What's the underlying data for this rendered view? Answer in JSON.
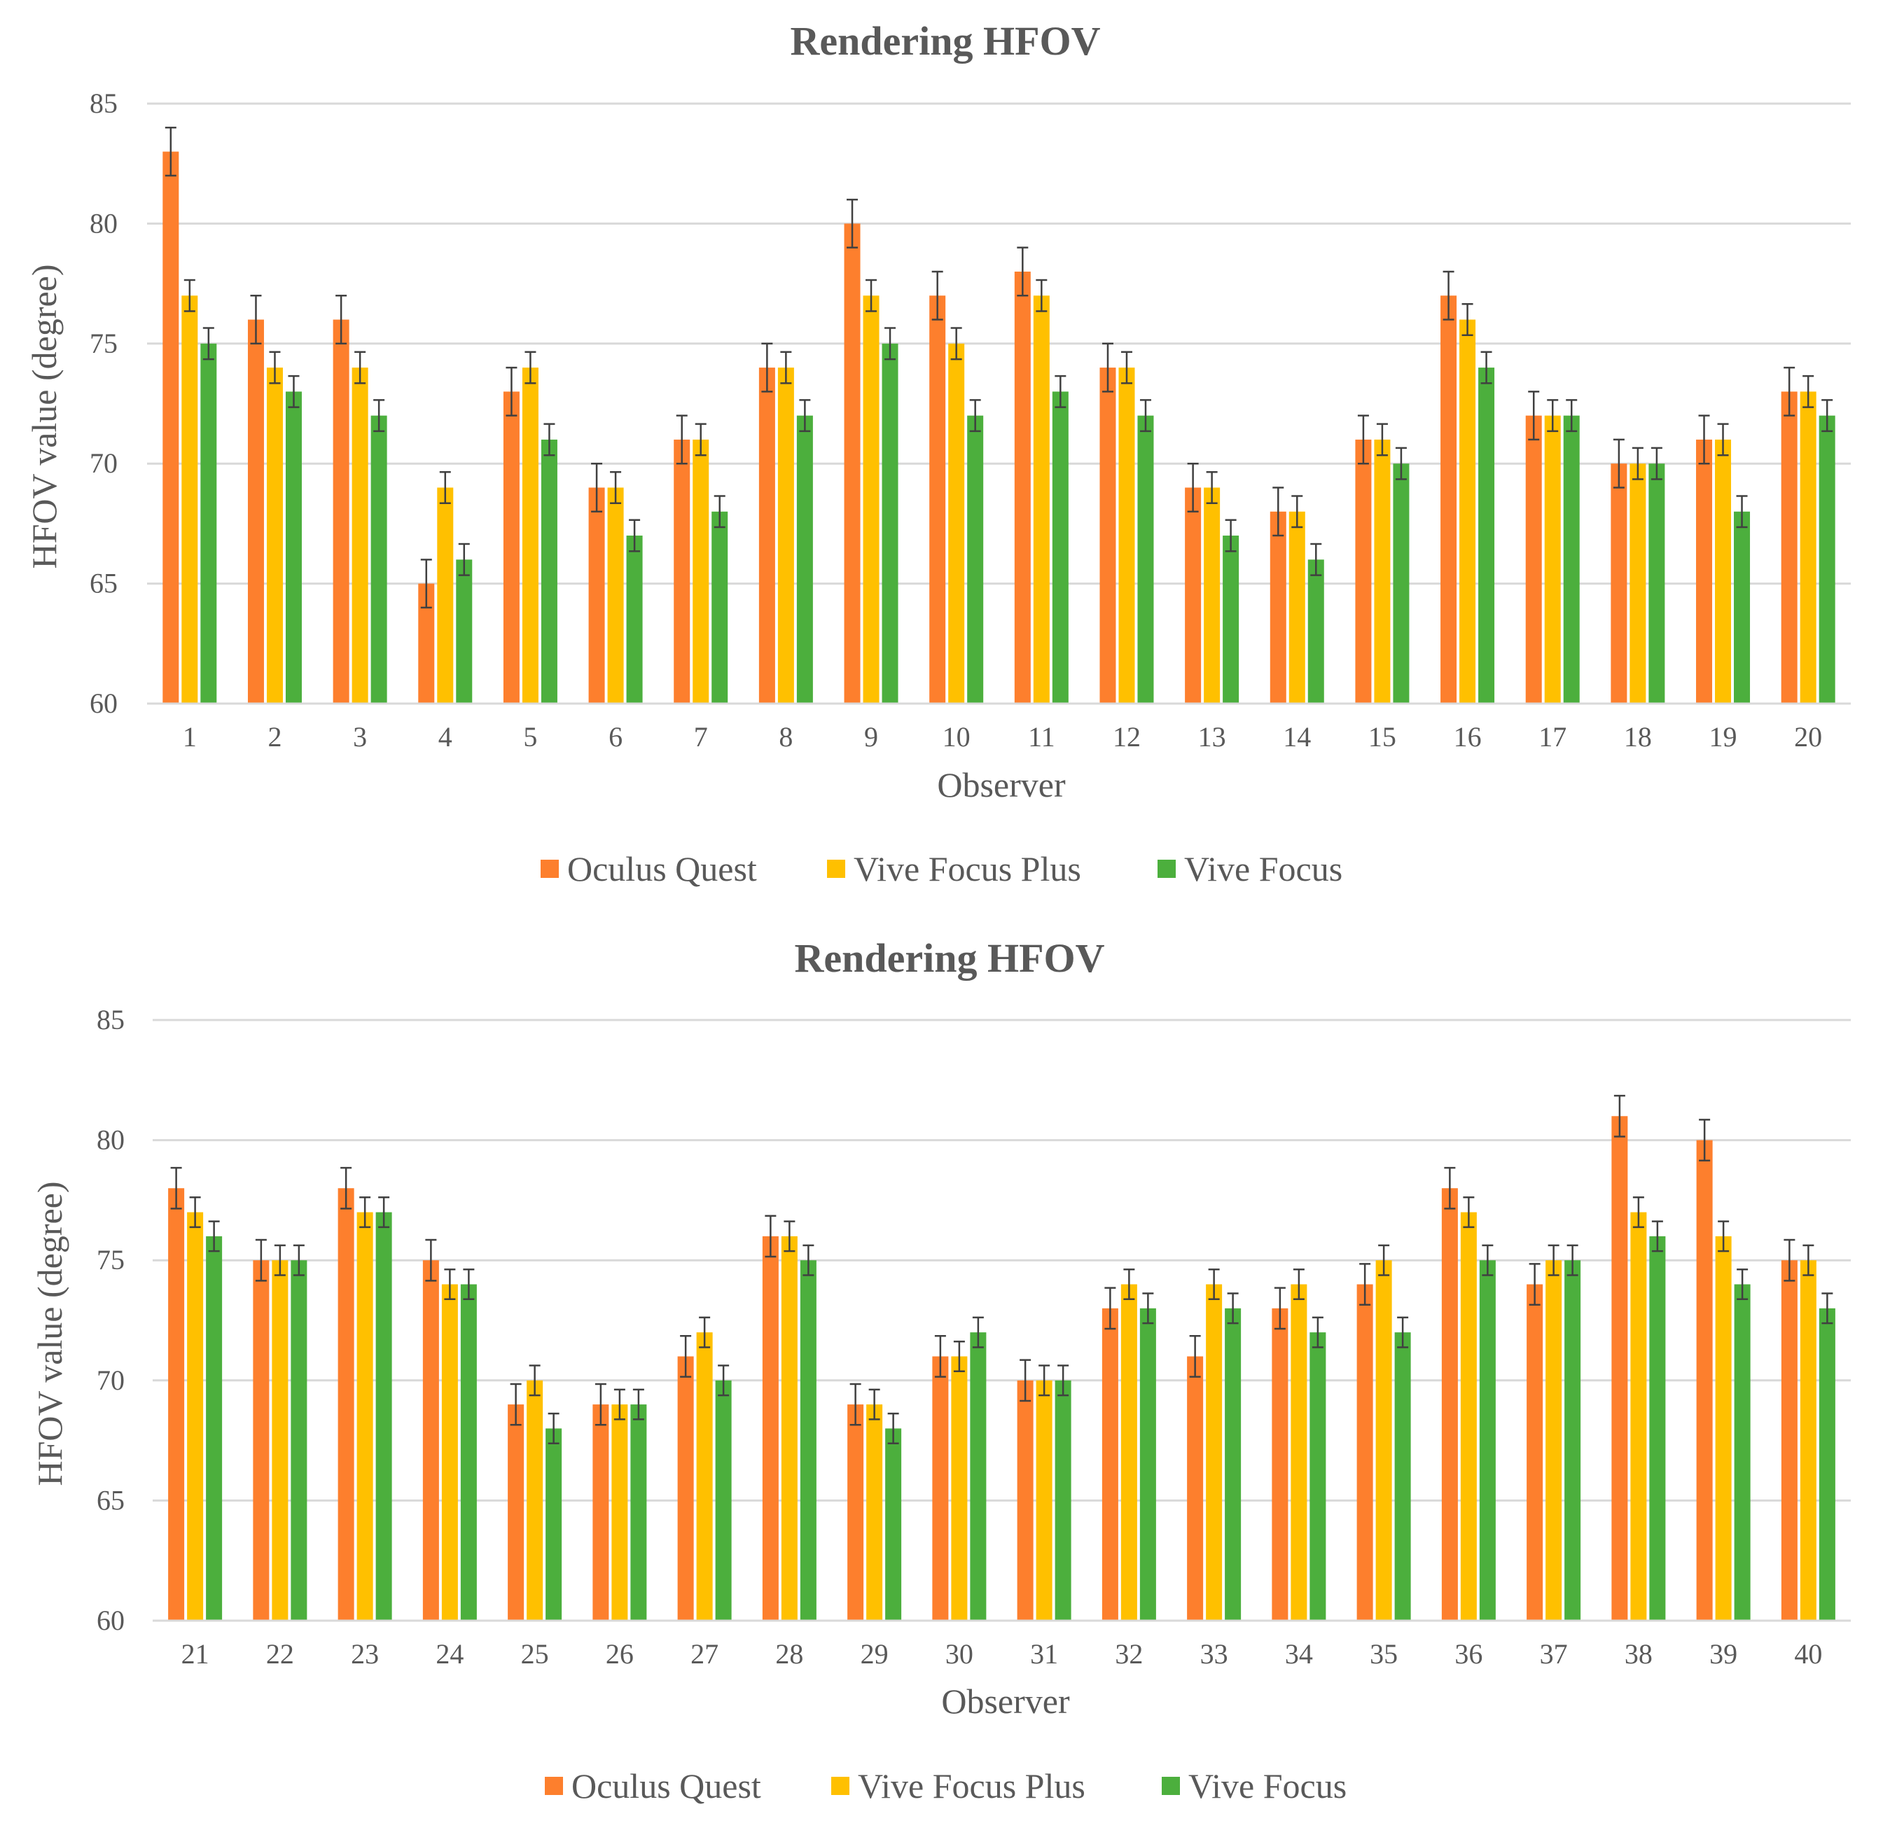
{
  "chart_data": [
    {
      "type": "bar",
      "title": "Rendering HFOV",
      "xlabel": "Observer",
      "ylabel": "HFOV value (degree)",
      "ylim": [
        60,
        85
      ],
      "yticks": [
        60,
        65,
        70,
        75,
        80,
        85
      ],
      "grid": true,
      "legend_position": "bottom",
      "error_bars": true,
      "categories": [
        "1",
        "2",
        "3",
        "4",
        "5",
        "6",
        "7",
        "8",
        "9",
        "10",
        "11",
        "12",
        "13",
        "14",
        "15",
        "16",
        "17",
        "18",
        "19",
        "20"
      ],
      "series": [
        {
          "name": "Oculus Quest",
          "color": "#fd7f2d",
          "values": [
            83,
            76,
            76,
            65,
            73,
            69,
            71,
            74,
            80,
            77,
            78,
            74,
            69,
            68,
            71,
            77,
            72,
            70,
            71,
            73
          ],
          "error": [
            1,
            1,
            1,
            1,
            1,
            1,
            1,
            1,
            1,
            1,
            1,
            1,
            1,
            1,
            1,
            1,
            1,
            1,
            1,
            1
          ]
        },
        {
          "name": "Vive Focus Plus",
          "color": "#ffc000",
          "values": [
            77,
            74,
            74,
            69,
            74,
            69,
            71,
            74,
            77,
            75,
            77,
            74,
            69,
            68,
            71,
            76,
            72,
            70,
            71,
            73
          ],
          "error": [
            0.65,
            0.65,
            0.65,
            0.65,
            0.65,
            0.65,
            0.65,
            0.65,
            0.65,
            0.65,
            0.65,
            0.65,
            0.65,
            0.65,
            0.65,
            0.65,
            0.65,
            0.65,
            0.65,
            0.65
          ]
        },
        {
          "name": "Vive Focus",
          "color": "#4caf3d",
          "values": [
            75,
            73,
            72,
            66,
            71,
            67,
            68,
            72,
            75,
            72,
            73,
            72,
            67,
            66,
            70,
            74,
            72,
            70,
            68,
            72
          ],
          "error": [
            0.65,
            0.65,
            0.65,
            0.65,
            0.65,
            0.65,
            0.65,
            0.65,
            0.65,
            0.65,
            0.65,
            0.65,
            0.65,
            0.65,
            0.65,
            0.65,
            0.65,
            0.65,
            0.65,
            0.65
          ]
        }
      ]
    },
    {
      "type": "bar",
      "title": "Rendering HFOV",
      "xlabel": "Observer",
      "ylabel": "HFOV value (degree)",
      "ylim": [
        60,
        85
      ],
      "yticks": [
        60,
        65,
        70,
        75,
        80,
        85
      ],
      "grid": true,
      "legend_position": "bottom",
      "error_bars": true,
      "categories": [
        "21",
        "22",
        "23",
        "24",
        "25",
        "26",
        "27",
        "28",
        "29",
        "30",
        "31",
        "32",
        "33",
        "34",
        "35",
        "36",
        "37",
        "38",
        "39",
        "40"
      ],
      "series": [
        {
          "name": "Oculus Quest",
          "color": "#fd7f2d",
          "values": [
            78,
            75,
            78,
            75,
            69,
            69,
            71,
            76,
            69,
            71,
            70,
            73,
            71,
            73,
            74,
            78,
            74,
            81,
            80,
            75
          ],
          "error": [
            0.85,
            0.85,
            0.85,
            0.85,
            0.85,
            0.85,
            0.85,
            0.85,
            0.85,
            0.85,
            0.85,
            0.85,
            0.85,
            0.85,
            0.85,
            0.85,
            0.85,
            0.85,
            0.85,
            0.85
          ]
        },
        {
          "name": "Vive Focus Plus",
          "color": "#ffc000",
          "values": [
            77,
            75,
            77,
            74,
            70,
            69,
            72,
            76,
            69,
            71,
            70,
            74,
            74,
            74,
            75,
            77,
            75,
            77,
            76,
            75
          ],
          "error": [
            0.62,
            0.62,
            0.62,
            0.62,
            0.62,
            0.62,
            0.62,
            0.62,
            0.62,
            0.62,
            0.62,
            0.62,
            0.62,
            0.62,
            0.62,
            0.62,
            0.62,
            0.62,
            0.62,
            0.62
          ]
        },
        {
          "name": "Vive Focus",
          "color": "#4caf3d",
          "values": [
            76,
            75,
            77,
            74,
            68,
            69,
            70,
            75,
            68,
            72,
            70,
            73,
            73,
            72,
            72,
            75,
            75,
            76,
            74,
            73
          ],
          "error": [
            0.62,
            0.62,
            0.62,
            0.62,
            0.62,
            0.62,
            0.62,
            0.62,
            0.62,
            0.62,
            0.62,
            0.62,
            0.62,
            0.62,
            0.62,
            0.62,
            0.62,
            0.62,
            0.62,
            0.62
          ]
        }
      ]
    }
  ]
}
